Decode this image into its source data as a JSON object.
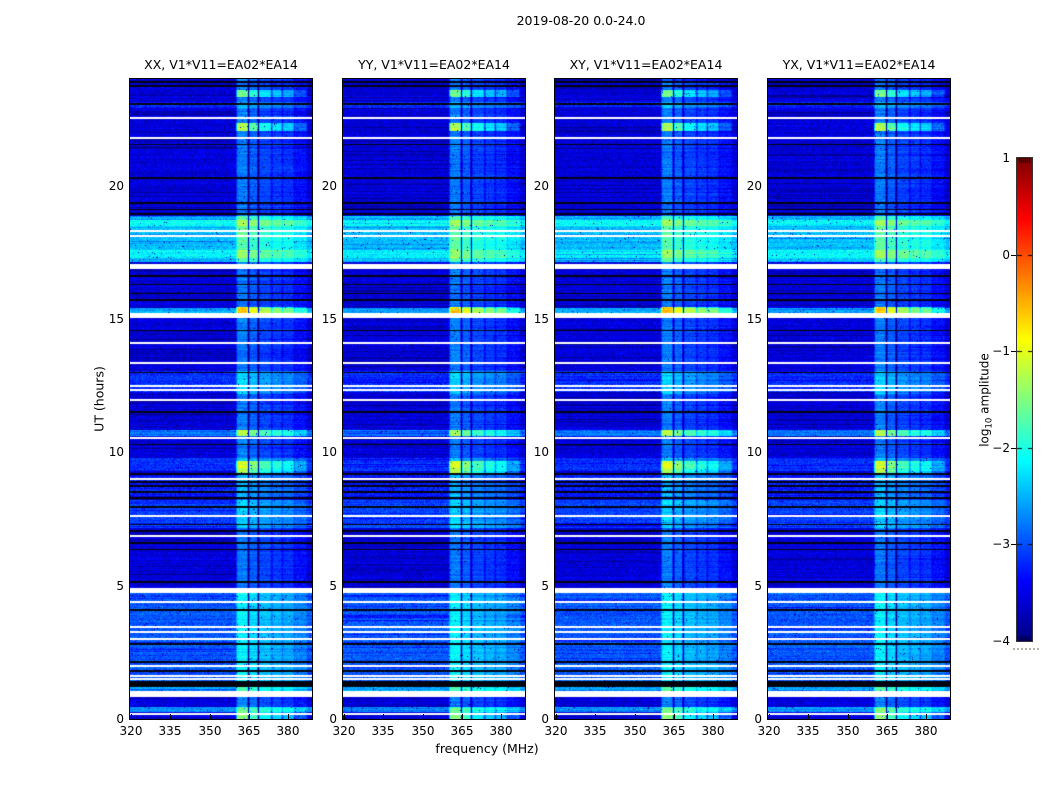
{
  "chart_data": {
    "type": "heatmap",
    "title": "2019-08-20 0.0-24.0",
    "panels": [
      {
        "title": "XX, V1*V11=EA02*EA14",
        "seed": 1101
      },
      {
        "title": "YY, V1*V11=EA02*EA14",
        "seed": 2202
      },
      {
        "title": "XY, V1*V11=EA02*EA14",
        "seed": 3303
      },
      {
        "title": "YX, V1*V11=EA02*EA14",
        "seed": 4404
      }
    ],
    "axes": {
      "x_label": "frequency (MHz)",
      "y_label": "UT (hours)",
      "x_tick_labels": [
        "320",
        "335",
        "350",
        "365",
        "380"
      ],
      "x_tick_values": [
        320,
        335,
        350,
        365,
        380
      ],
      "y_tick_labels": [
        "0",
        "5",
        "10",
        "15",
        "20"
      ],
      "y_tick_values": [
        0,
        5,
        10,
        15,
        20
      ],
      "x_range": [
        319.6,
        389.2
      ],
      "y_range": [
        0,
        24
      ],
      "grid": false
    },
    "colorbar": {
      "label_prefix": "log",
      "label_sub": "10",
      "label_suffix": " amplitude",
      "tick_labels": [
        "1",
        "0",
        "−1",
        "−2",
        "−3",
        "−4"
      ],
      "tick_values": [
        1,
        0,
        -1,
        -2,
        -3,
        -4
      ],
      "vmin": -4,
      "vmax": 1,
      "colormap": "jet",
      "navy_hex": "#000080",
      "darkred_hex": "#800000"
    },
    "features": {
      "background_level": -3.55,
      "band": {
        "substripes": [
          [
            360.8,
            364.6,
            1.0
          ],
          [
            365.4,
            368.3,
            0.82
          ],
          [
            369.2,
            373.2,
            0.66
          ],
          [
            374.4,
            377.3,
            0.58
          ],
          [
            378.4,
            381.9,
            0.52
          ],
          [
            382.8,
            386.8,
            0.3
          ]
        ],
        "edge_mhz": 0.9,
        "boost": 0.85,
        "dark_cols_mhz": [
          364.9,
          368.7
        ]
      },
      "elevated_regions": [
        [
          17.15,
          18.85,
          -2.45
        ],
        [
          12.25,
          13.05,
          -3.15
        ],
        [
          8.25,
          9.2,
          -3.25
        ],
        [
          7.15,
          8.2,
          -3.05
        ],
        [
          1.35,
          4.75,
          -2.95
        ],
        [
          22.9,
          23.15,
          -3.2
        ]
      ],
      "bright_full_rows": [
        [
          18.6,
          0.25,
          -2.1
        ],
        [
          17.45,
          0.3,
          -2.15
        ],
        [
          15.3,
          0.25,
          -2.55
        ],
        [
          10.72,
          0.2,
          -2.75
        ],
        [
          9.55,
          0.5,
          -3.15
        ],
        [
          1.15,
          0.2,
          -2.55
        ],
        [
          0.35,
          0.2,
          -2.65
        ]
      ],
      "hot_band_rows": [
        [
          23.45,
          0.25,
          -1.35
        ],
        [
          22.2,
          0.3,
          -1.05
        ],
        [
          15.3,
          0.3,
          -0.45
        ],
        [
          12.6,
          0.8,
          -2.25
        ],
        [
          10.72,
          0.25,
          -1.1
        ],
        [
          9.55,
          0.25,
          -0.85
        ],
        [
          9.3,
          0.2,
          -1.05
        ],
        [
          7.6,
          0.6,
          -2.3
        ],
        [
          1.15,
          0.25,
          -1.6
        ],
        [
          0.3,
          0.25,
          -1.4
        ],
        [
          0.07,
          0.15,
          -1.25
        ]
      ],
      "white_rows": [
        [
          22.55,
          2
        ],
        [
          21.8,
          2
        ],
        [
          18.3,
          2
        ],
        [
          18.1,
          2
        ],
        [
          17.0,
          4
        ],
        [
          16.9,
          2
        ],
        [
          15.12,
          5
        ],
        [
          14.1,
          2
        ],
        [
          13.35,
          2
        ],
        [
          12.5,
          2
        ],
        [
          12.32,
          2
        ],
        [
          11.95,
          2
        ],
        [
          10.55,
          2
        ],
        [
          9.0,
          2
        ],
        [
          7.62,
          2
        ],
        [
          6.85,
          2
        ],
        [
          4.82,
          5
        ],
        [
          4.4,
          2
        ],
        [
          3.45,
          2
        ],
        [
          3.28,
          2
        ],
        [
          3.0,
          2
        ],
        [
          2.0,
          2
        ],
        [
          1.62,
          2
        ],
        [
          1.5,
          2
        ],
        [
          0.95,
          6
        ],
        [
          0.18,
          2
        ]
      ],
      "black_rows": [
        [
          23.87,
          2
        ],
        [
          23.72,
          2
        ],
        [
          23.05,
          2
        ],
        [
          21.55,
          1
        ],
        [
          20.3,
          2
        ],
        [
          19.35,
          2
        ],
        [
          19.1,
          1
        ],
        [
          18.92,
          2
        ],
        [
          16.6,
          2
        ],
        [
          16.28,
          1
        ],
        [
          15.97,
          1
        ],
        [
          15.72,
          2
        ],
        [
          14.55,
          1
        ],
        [
          13.0,
          1
        ],
        [
          11.52,
          2
        ],
        [
          10.3,
          1
        ],
        [
          9.17,
          2
        ],
        [
          8.9,
          2
        ],
        [
          8.72,
          2
        ],
        [
          8.5,
          2
        ],
        [
          8.28,
          2
        ],
        [
          7.95,
          2
        ],
        [
          7.28,
          1
        ],
        [
          7.05,
          2
        ],
        [
          6.6,
          2
        ],
        [
          6.35,
          1
        ],
        [
          5.12,
          2
        ],
        [
          4.1,
          2
        ],
        [
          2.82,
          2
        ],
        [
          2.12,
          2
        ],
        [
          1.8,
          1
        ],
        [
          1.35,
          3
        ],
        [
          1.22,
          2
        ]
      ]
    }
  }
}
